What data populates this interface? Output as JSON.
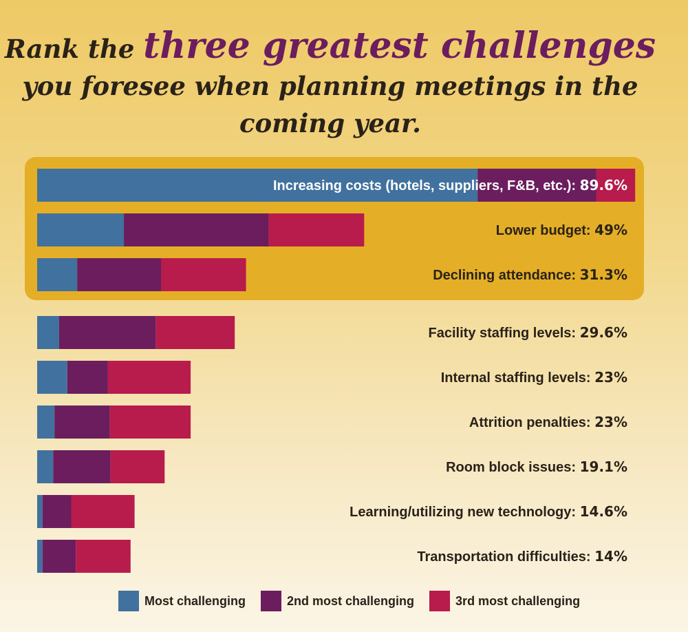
{
  "title": {
    "line1_prefix": "Rank the",
    "line1_accent": "three greatest challenges",
    "line2": "you foresee when planning meetings in the",
    "line3": "coming year."
  },
  "colors": {
    "most": "#41729f",
    "second": "#6b1d5e",
    "third": "#b81c4d",
    "highlight": "#e4ae26"
  },
  "chart_data": {
    "type": "bar",
    "orientation": "horizontal",
    "stacked": true,
    "title": "Rank the three greatest challenges you foresee when planning meetings in the coming year.",
    "categories": [
      "Increasing costs (hotels, suppliers, F&B, etc.)",
      "Lower budget",
      "Declining attendance",
      "Facility staffing levels",
      "Internal staffing levels",
      "Attrition penalties",
      "Room block issues",
      "Learning/utilizing new technology",
      "Transportation difficulties"
    ],
    "totals": [
      "89.6%",
      "49%",
      "31.3%",
      "29.6%",
      "23%",
      "23%",
      "19.1%",
      "14.6%",
      "14%"
    ],
    "total_values": [
      89.6,
      49,
      31.3,
      29.6,
      23,
      23,
      19.1,
      14.6,
      14
    ],
    "series": [
      {
        "name": "Most challenging",
        "values": [
          66.0,
          13.0,
          6.0,
          3.3,
          4.5,
          2.6,
          2.4,
          0.8,
          0.8
        ]
      },
      {
        "name": "2nd most challenging",
        "values": [
          17.8,
          21.7,
          12.6,
          14.5,
          6.1,
          8.3,
          8.6,
          4.3,
          5.0
        ]
      },
      {
        "name": "3rd most challenging",
        "values": [
          5.8,
          14.3,
          12.7,
          11.8,
          12.4,
          12.1,
          8.1,
          9.5,
          8.2
        ]
      }
    ],
    "highlighted_top": 3,
    "legend_position": "bottom",
    "grid": false
  }
}
